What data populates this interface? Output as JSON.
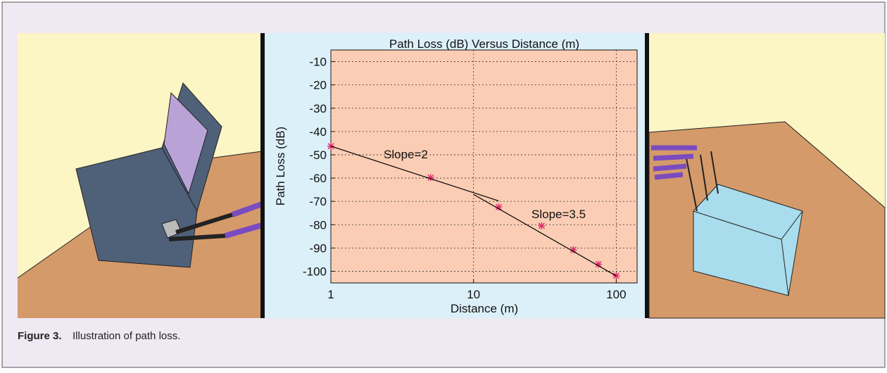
{
  "chart_data": {
    "type": "line",
    "title": "Path Loss (dB) Versus Distance (m)",
    "x_label": "Distance (m)",
    "y_label": "Path Loss (dB)",
    "xscale": "log",
    "xlim": [
      1,
      140
    ],
    "xticks": [
      1,
      10,
      100
    ],
    "ylim": [
      -105,
      -5
    ],
    "yticks": [
      -10,
      -20,
      -30,
      -40,
      -50,
      -60,
      -70,
      -80,
      -90,
      -100
    ],
    "grid": true,
    "background": "#fbcdb4",
    "series": [
      {
        "color": "#e0306b",
        "marker": "asterisk",
        "x": [
          1,
          5,
          15,
          30,
          50,
          75,
          100
        ],
        "values": [
          -46.3,
          -59.8,
          -72.4,
          -80.5,
          -90.8,
          -97,
          -101.9
        ]
      },
      {
        "color": "#000000",
        "x": [
          1,
          15
        ],
        "values": [
          -46.3,
          -69.8
        ]
      },
      {
        "color": "#000000",
        "x": [
          10,
          100
        ],
        "values": [
          -67,
          -102
        ]
      }
    ],
    "annotations": [
      {
        "text": "Slope=2"
      },
      {
        "text": "Slope=3.5"
      }
    ]
  },
  "caption": {
    "label": "Figure 3.",
    "text": "Illustration of path loss."
  }
}
